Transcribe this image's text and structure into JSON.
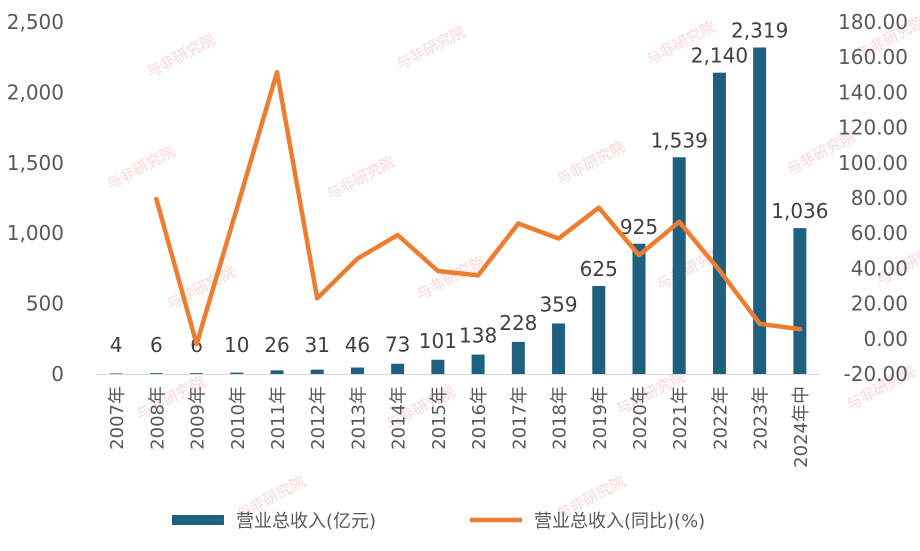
{
  "chart_data": {
    "type": "bar+line",
    "categories": [
      "2007年",
      "2008年",
      "2009年",
      "2010年",
      "2011年",
      "2012年",
      "2013年",
      "2014年",
      "2015年",
      "2016年",
      "2017年",
      "2018年",
      "2019年",
      "2020年",
      "2021年",
      "2022年",
      "2023年",
      "2024年中"
    ],
    "series": [
      {
        "name": "营业总收入(亿元)",
        "type": "bar",
        "axis": "left",
        "color": "#1f5f7f",
        "values": [
          4,
          6,
          6,
          10,
          26,
          31,
          46,
          73,
          101,
          138,
          228,
          359,
          625,
          925,
          1539,
          2140,
          2319,
          1036
        ],
        "labels": [
          "4",
          "6",
          "6",
          "10",
          "26",
          "31",
          "46",
          "73",
          "101",
          "138",
          "228",
          "359",
          "625",
          "925",
          "1,539",
          "2,140",
          "2,319",
          "1,036"
        ]
      },
      {
        "name": "营业总收入(同比)(%)",
        "type": "line",
        "axis": "right",
        "color": "#ed7d31",
        "values": [
          null,
          79.5,
          -3.0,
          74.0,
          151.5,
          23.0,
          45.5,
          59.0,
          38.5,
          36.0,
          65.5,
          57.0,
          74.5,
          47.5,
          66.5,
          39.0,
          8.5,
          5.5
        ]
      }
    ],
    "left_axis": {
      "ylim": [
        0,
        2500
      ],
      "ticks": [
        "0",
        "500",
        "1,000",
        "1,500",
        "2,000",
        "2,500"
      ]
    },
    "right_axis": {
      "ylim": [
        -20,
        180
      ],
      "ticks": [
        "-20.00",
        "0.00",
        "20.00",
        "40.00",
        "60.00",
        "80.00",
        "100.00",
        "120.00",
        "140.00",
        "160.00",
        "180.00"
      ]
    },
    "legend": {
      "position": "bottom",
      "items": [
        "营业总收入(亿元)",
        "营业总收入(同比)(%)"
      ]
    },
    "grid": false,
    "watermark": "与非研究院"
  }
}
